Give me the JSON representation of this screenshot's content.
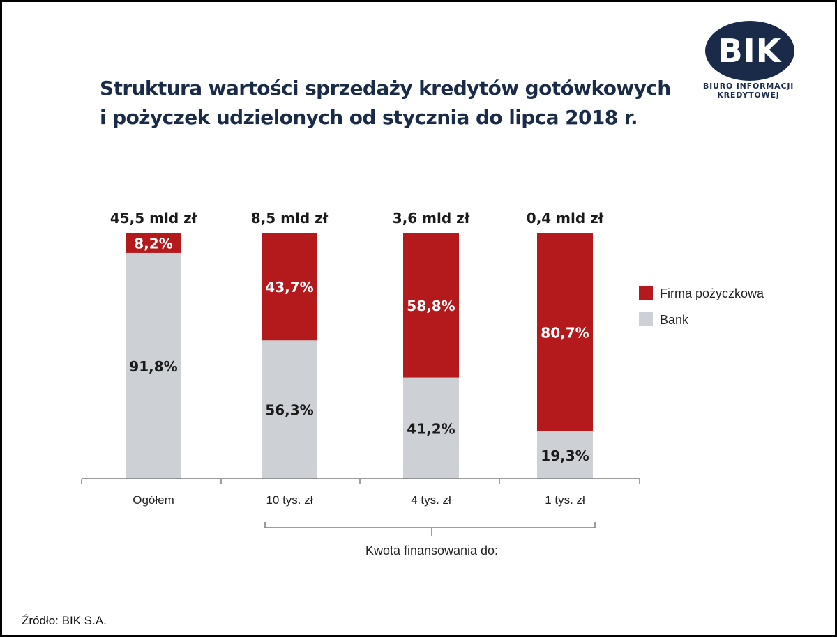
{
  "colors": {
    "firma": "#b4191c",
    "bank": "#cdd0d5",
    "navy": "#1a2b4a",
    "axis": "#7d7d7d"
  },
  "header": {
    "title_line1": "Struktura wartości sprzedaży kredytów gotówkowych",
    "title_line2": "i pożyczek udzielonych od stycznia do lipca 2018 r."
  },
  "logo": {
    "text": "BIK",
    "subtitle": "BIURO INFORMACJI KREDYTOWEJ"
  },
  "footer": {
    "source": "Źródło: BIK S.A."
  },
  "chart_data": {
    "type": "bar",
    "stacked": true,
    "normalized_percent": true,
    "categories": [
      "Ogółem",
      "10 tys. zł",
      "4 tys. zł",
      "1 tys. zł"
    ],
    "totals": [
      "45,5 mld zł",
      "8,5 mld zł",
      "3,6 mld zł",
      "0,4 mld zł"
    ],
    "series": [
      {
        "name": "Bank",
        "color_key": "bank",
        "values": [
          91.8,
          56.3,
          41.2,
          19.3
        ],
        "labels": [
          "91,8%",
          "56,3%",
          "41,2%",
          "19,3%"
        ]
      },
      {
        "name": "Firma pożyczkowa",
        "color_key": "firma",
        "values": [
          8.2,
          43.7,
          58.8,
          80.7
        ],
        "labels": [
          "8,2%",
          "43,7%",
          "58,8%",
          "80,7%"
        ]
      }
    ],
    "group_label": "Kwota finansowania do:",
    "ylim": [
      0,
      100
    ],
    "grid": false,
    "legend_position": "right"
  }
}
